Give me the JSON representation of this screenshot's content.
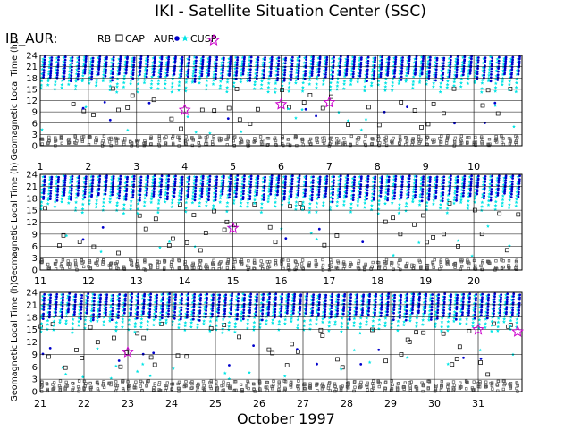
{
  "header": {
    "title": "IKI - Satellite Situation Center (SSC)",
    "dataset": "IB_AUR:",
    "footer": "October    1997"
  },
  "legend": [
    {
      "label": "RB",
      "symbol": "none",
      "color": "#000000"
    },
    {
      "label": "CAP",
      "symbol": "open-square",
      "color": "#000000"
    },
    {
      "label": "AUR",
      "symbol": "dot",
      "color": "#0000cc"
    },
    {
      "label": "CUSP",
      "symbol": "star",
      "color": "#00e5e5"
    },
    {
      "label": "",
      "symbol": "open-star",
      "color": "#cc00cc"
    }
  ],
  "colors": {
    "background": "#ffffff",
    "axis": "#000000",
    "rb": "#000000",
    "cap": "#000000",
    "aur": "#0000cc",
    "cusp": "#00e5e5",
    "event": "#cc00cc"
  },
  "chart_data": {
    "type": "scatter",
    "ylabel": "Geomagnetic Local Time (h)",
    "yticks": [
      "0",
      "3",
      "6",
      "9",
      "12",
      "15",
      "18",
      "21",
      "24"
    ],
    "ylim": [
      0,
      24
    ],
    "panels": [
      {
        "xticks": [
          "1",
          "2",
          "3",
          "4",
          "5",
          "6",
          "7",
          "8",
          "9",
          "10"
        ],
        "xlim": [
          1,
          11
        ],
        "events": [
          {
            "day": 4.0,
            "y": 9.5
          },
          {
            "day": 6.0,
            "y": 11.0
          },
          {
            "day": 7.0,
            "y": 11.5
          }
        ]
      },
      {
        "xticks": [
          "11",
          "12",
          "13",
          "14",
          "15",
          "16",
          "17",
          "18",
          "19",
          "20"
        ],
        "xlim": [
          11,
          21
        ],
        "events": [
          {
            "day": 15.0,
            "y": 10.5
          }
        ]
      },
      {
        "xticks": [
          "21",
          "22",
          "23",
          "24",
          "25",
          "26",
          "27",
          "28",
          "29",
          "30",
          "31"
        ],
        "xlim": [
          21,
          32
        ],
        "events": [
          {
            "day": 23.0,
            "y": 9.5
          },
          {
            "day": 31.0,
            "y": 15.0
          },
          {
            "day": 31.9,
            "y": 14.5
          }
        ]
      }
    ],
    "series": [
      {
        "name": "RB",
        "region": "near-zero GLT, every orbit"
      },
      {
        "name": "CAP",
        "region": "4-18 h, scattered"
      },
      {
        "name": "AUR",
        "region": "17-24 h, dense streaks"
      },
      {
        "name": "CUSP",
        "region": "10-24 h, dense streaks"
      }
    ],
    "orbits_per_day": 7,
    "grid": true
  }
}
